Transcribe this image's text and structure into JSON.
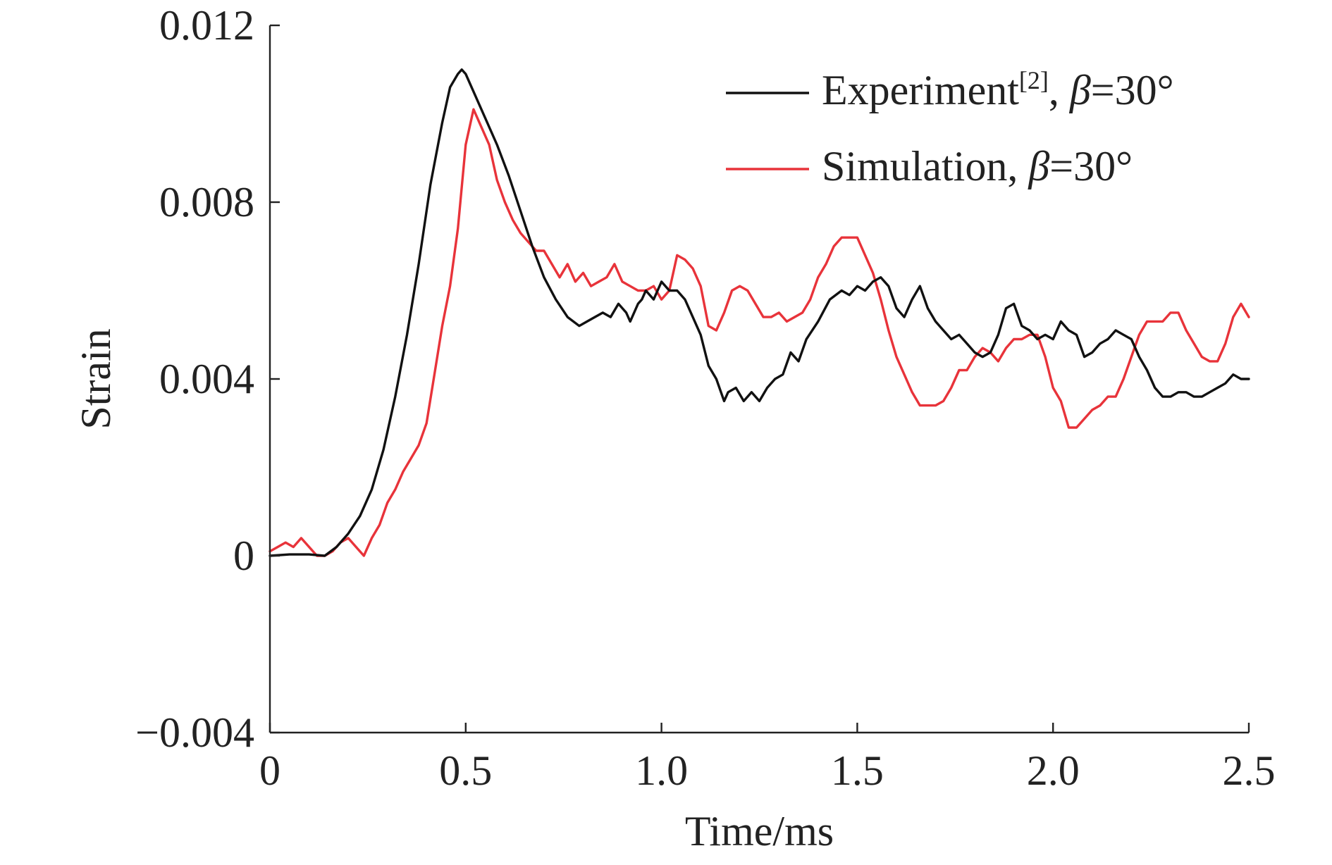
{
  "colors": {
    "experiment": "#111111",
    "simulation": "#e8333a",
    "axis": "#222222"
  },
  "chart_data": {
    "type": "line",
    "title": "",
    "xlabel": "Time/ms",
    "ylabel": "Strain",
    "xlim": [
      0,
      2.5
    ],
    "ylim": [
      -0.004,
      0.012
    ],
    "grid": false,
    "legend_position": "top-right",
    "x_ticks": [
      {
        "value": 0,
        "label": "0"
      },
      {
        "value": 0.5,
        "label": "0.5"
      },
      {
        "value": 1.0,
        "label": "1.0"
      },
      {
        "value": 1.5,
        "label": "1.5"
      },
      {
        "value": 2.0,
        "label": "2.0"
      },
      {
        "value": 2.5,
        "label": "2.5"
      }
    ],
    "y_ticks": [
      {
        "value": -0.004,
        "label": "−0.004"
      },
      {
        "value": 0,
        "label": "0"
      },
      {
        "value": 0.004,
        "label": "0.004"
      },
      {
        "value": 0.008,
        "label": "0.008"
      },
      {
        "value": 0.012,
        "label": "0.012"
      }
    ],
    "series": [
      {
        "name": "Experiment[2], β=30°",
        "legend_main": "Experiment",
        "legend_sup": "[2]",
        "legend_tail": ", ",
        "legend_beta": "β",
        "legend_end": "=30°",
        "color": "#111111",
        "x": [
          0,
          0.05,
          0.1,
          0.14,
          0.17,
          0.2,
          0.23,
          0.26,
          0.29,
          0.32,
          0.35,
          0.38,
          0.41,
          0.44,
          0.46,
          0.48,
          0.49,
          0.5,
          0.52,
          0.55,
          0.58,
          0.61,
          0.64,
          0.67,
          0.7,
          0.73,
          0.76,
          0.79,
          0.81,
          0.83,
          0.85,
          0.87,
          0.89,
          0.91,
          0.92,
          0.94,
          0.95,
          0.96,
          0.98,
          1.0,
          1.02,
          1.04,
          1.06,
          1.08,
          1.1,
          1.12,
          1.14,
          1.16,
          1.17,
          1.19,
          1.21,
          1.23,
          1.25,
          1.27,
          1.29,
          1.31,
          1.33,
          1.35,
          1.37,
          1.4,
          1.43,
          1.46,
          1.48,
          1.5,
          1.52,
          1.54,
          1.56,
          1.58,
          1.6,
          1.62,
          1.64,
          1.66,
          1.68,
          1.7,
          1.72,
          1.74,
          1.76,
          1.78,
          1.8,
          1.82,
          1.84,
          1.86,
          1.88,
          1.9,
          1.92,
          1.94,
          1.96,
          1.98,
          2.0,
          2.02,
          2.04,
          2.06,
          2.08,
          2.1,
          2.12,
          2.14,
          2.16,
          2.18,
          2.2,
          2.22,
          2.24,
          2.26,
          2.28,
          2.3,
          2.32,
          2.34,
          2.36,
          2.38,
          2.4,
          2.42,
          2.44,
          2.46,
          2.48,
          2.5
        ],
        "y": [
          0,
          3e-05,
          3e-05,
          0,
          0.0002,
          0.0005,
          0.0009,
          0.0015,
          0.0024,
          0.0036,
          0.005,
          0.0066,
          0.0084,
          0.0098,
          0.0106,
          0.0109,
          0.011,
          0.0109,
          0.0105,
          0.0099,
          0.0093,
          0.0086,
          0.0078,
          0.007,
          0.0063,
          0.0058,
          0.0054,
          0.0052,
          0.0053,
          0.0054,
          0.0055,
          0.0054,
          0.0057,
          0.0055,
          0.0053,
          0.0057,
          0.0058,
          0.006,
          0.0058,
          0.0062,
          0.006,
          0.006,
          0.0058,
          0.0054,
          0.005,
          0.0043,
          0.004,
          0.0035,
          0.0037,
          0.0038,
          0.0035,
          0.0037,
          0.0035,
          0.0038,
          0.004,
          0.0041,
          0.0046,
          0.0044,
          0.0049,
          0.0053,
          0.0058,
          0.006,
          0.0059,
          0.0061,
          0.006,
          0.0062,
          0.0063,
          0.0061,
          0.0056,
          0.0054,
          0.0058,
          0.0061,
          0.0056,
          0.0053,
          0.0051,
          0.0049,
          0.005,
          0.0048,
          0.0046,
          0.0045,
          0.0046,
          0.005,
          0.0056,
          0.0057,
          0.0052,
          0.0051,
          0.0049,
          0.005,
          0.0049,
          0.0053,
          0.0051,
          0.005,
          0.0045,
          0.0046,
          0.0048,
          0.0049,
          0.0051,
          0.005,
          0.0049,
          0.0045,
          0.0042,
          0.0038,
          0.0036,
          0.0036,
          0.0037,
          0.0037,
          0.0036,
          0.0036,
          0.0037,
          0.0038,
          0.0039,
          0.0041,
          0.004,
          0.004
        ]
      },
      {
        "name": "Simulation, β=30°",
        "legend_main": "Simulation, ",
        "legend_sup": "",
        "legend_tail": "",
        "legend_beta": "β",
        "legend_end": "=30°",
        "color": "#e8333a",
        "x": [
          0,
          0.02,
          0.04,
          0.06,
          0.08,
          0.1,
          0.12,
          0.14,
          0.16,
          0.18,
          0.2,
          0.22,
          0.24,
          0.26,
          0.28,
          0.3,
          0.32,
          0.34,
          0.36,
          0.38,
          0.4,
          0.42,
          0.44,
          0.46,
          0.48,
          0.5,
          0.52,
          0.54,
          0.56,
          0.58,
          0.6,
          0.62,
          0.64,
          0.66,
          0.68,
          0.7,
          0.72,
          0.74,
          0.76,
          0.78,
          0.8,
          0.82,
          0.84,
          0.86,
          0.88,
          0.9,
          0.92,
          0.94,
          0.96,
          0.98,
          1.0,
          1.02,
          1.04,
          1.06,
          1.08,
          1.1,
          1.12,
          1.14,
          1.16,
          1.18,
          1.2,
          1.22,
          1.24,
          1.26,
          1.28,
          1.3,
          1.32,
          1.34,
          1.36,
          1.38,
          1.4,
          1.42,
          1.44,
          1.46,
          1.48,
          1.5,
          1.52,
          1.54,
          1.56,
          1.58,
          1.6,
          1.62,
          1.64,
          1.66,
          1.68,
          1.7,
          1.72,
          1.74,
          1.76,
          1.78,
          1.8,
          1.82,
          1.84,
          1.86,
          1.88,
          1.9,
          1.92,
          1.94,
          1.96,
          1.98,
          2.0,
          2.02,
          2.04,
          2.06,
          2.08,
          2.1,
          2.12,
          2.14,
          2.16,
          2.18,
          2.2,
          2.22,
          2.24,
          2.26,
          2.28,
          2.3,
          2.32,
          2.34,
          2.36,
          2.38,
          2.4,
          2.42,
          2.44,
          2.46,
          2.48,
          2.5
        ],
        "y": [
          0.0001,
          0.0002,
          0.0003,
          0.0002,
          0.0004,
          0.0002,
          0,
          0,
          0.0001,
          0.0003,
          0.0004,
          0.0002,
          0,
          0.0004,
          0.0007,
          0.0012,
          0.0015,
          0.0019,
          0.0022,
          0.0025,
          0.003,
          0.0041,
          0.0052,
          0.0061,
          0.0074,
          0.0093,
          0.0101,
          0.0097,
          0.0093,
          0.0085,
          0.008,
          0.0076,
          0.0073,
          0.0071,
          0.0069,
          0.0069,
          0.0066,
          0.0063,
          0.0066,
          0.0062,
          0.0064,
          0.0061,
          0.0062,
          0.0063,
          0.0066,
          0.0062,
          0.0061,
          0.006,
          0.006,
          0.0061,
          0.0058,
          0.006,
          0.0068,
          0.0067,
          0.0065,
          0.0061,
          0.0052,
          0.0051,
          0.0055,
          0.006,
          0.0061,
          0.006,
          0.0057,
          0.0054,
          0.0054,
          0.0055,
          0.0053,
          0.0054,
          0.0055,
          0.0058,
          0.0063,
          0.0066,
          0.007,
          0.0072,
          0.0072,
          0.0072,
          0.0068,
          0.0064,
          0.0058,
          0.0051,
          0.0045,
          0.0041,
          0.0037,
          0.0034,
          0.0034,
          0.0034,
          0.0035,
          0.0038,
          0.0042,
          0.0042,
          0.0045,
          0.0047,
          0.0046,
          0.0044,
          0.0047,
          0.0049,
          0.0049,
          0.005,
          0.005,
          0.0045,
          0.0038,
          0.0035,
          0.0029,
          0.0029,
          0.0031,
          0.0033,
          0.0034,
          0.0036,
          0.0036,
          0.004,
          0.0045,
          0.005,
          0.0053,
          0.0053,
          0.0053,
          0.0055,
          0.0055,
          0.0051,
          0.0048,
          0.0045,
          0.0044,
          0.0044,
          0.0048,
          0.0054,
          0.0057,
          0.0054
        ]
      }
    ]
  }
}
